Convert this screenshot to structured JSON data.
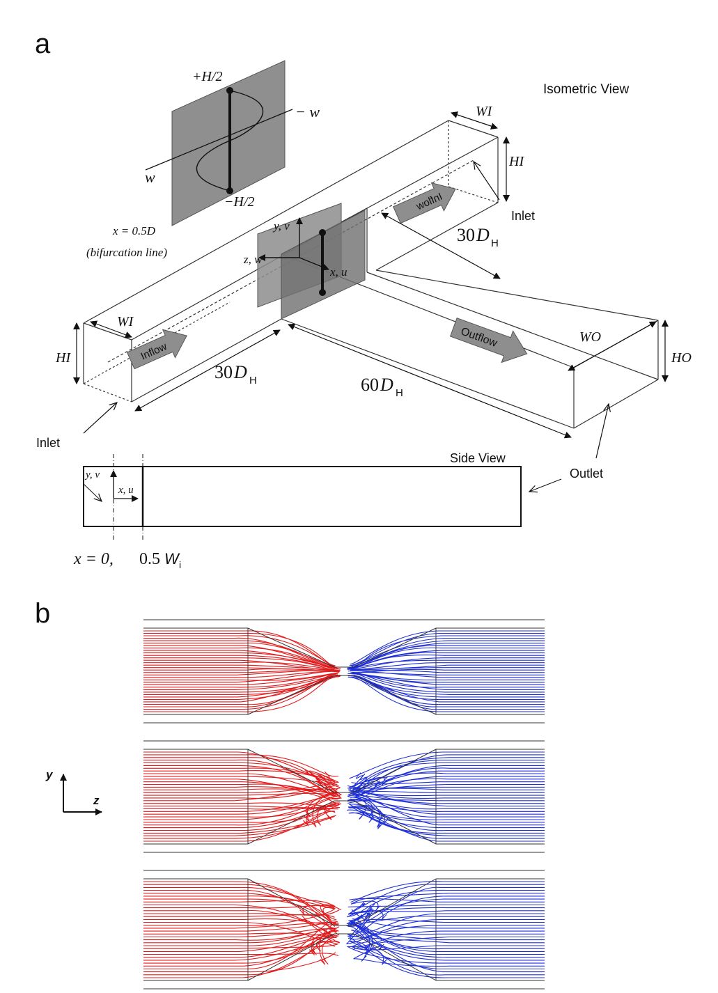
{
  "panel_a": {
    "letter": "a",
    "isometric_title": "Isometric View",
    "inset": {
      "top_label": "+H/2",
      "bottom_label": "−H/2",
      "left_label": "w",
      "right_label": "− w",
      "caption_eq": "x = 0.5D",
      "caption_note": "(bifurcation line)"
    },
    "labels": {
      "wi_right": "WI",
      "hi_right": "HI",
      "wi_left": "WI",
      "hi_left": "HI",
      "wo": "WO",
      "ho": "HO",
      "inflow_right": "Inflow",
      "inflow_left": "Inflow",
      "outflow": "Outflow",
      "inlet_right": "Inlet",
      "inlet_left": "Inlet",
      "outlet": "Outlet",
      "len_right_num": "30",
      "len_left_num": "30",
      "len_out_num": "60",
      "len_sym": "D",
      "len_sub": "H",
      "axis_y": "y, v",
      "axis_z": "z, w",
      "axis_x": "x, u"
    },
    "side_view": {
      "title": "Side View",
      "axis_y": "y, v",
      "axis_x": "x, u",
      "pos_label_1": "x = 0,",
      "pos_label_2_num": "0.5",
      "pos_label_2_sym": "W",
      "pos_label_2_sub": "i"
    }
  },
  "panel_b": {
    "letter": "b",
    "axis_y": "y",
    "axis_z": "z",
    "colors": {
      "left_stream": "#e31a1c",
      "right_stream": "#1f2fd6",
      "outline": "#333333"
    },
    "panels_count": 3
  }
}
